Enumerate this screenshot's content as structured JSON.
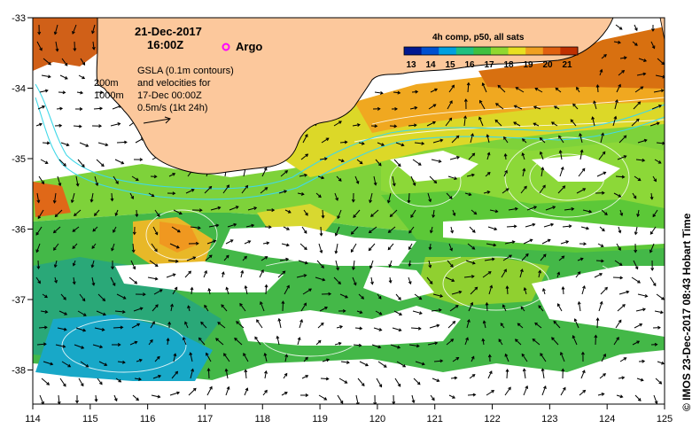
{
  "map": {
    "date": "21-Dec-2017",
    "time": "16:00Z",
    "argo_label": "Argo",
    "composite_label": "4h comp, p50, all sats",
    "colorbar_ticks": [
      "13",
      "14",
      "15",
      "16",
      "17",
      "18",
      "19",
      "20",
      "21"
    ],
    "depth_contours": [
      "200m",
      "1000m"
    ],
    "gsla_lines": [
      "GSLA (0.1m contours)",
      "and velocities for",
      "17-Dec 00:00Z",
      "0.5m/s (1kt 24h)"
    ],
    "credit": "© IMOS 23-Dec-2017 08:43 Hobart Time",
    "x_ticks": [
      "114",
      "115",
      "116",
      "117",
      "118",
      "119",
      "120",
      "121",
      "122",
      "123",
      "124",
      "125"
    ],
    "y_ticks": [
      "-33",
      "-34",
      "-35",
      "-36",
      "-37",
      "-38"
    ],
    "colors": {
      "land": "#fcc89c",
      "bathymetry": "#40d8e8",
      "contour": "#ffffff",
      "argo": "#ff00ff"
    },
    "colorbar_colors": [
      "#001890",
      "#0050d0",
      "#00a0e0",
      "#20c080",
      "#40c040",
      "#90d830",
      "#e8e020",
      "#f0a020",
      "#e06010",
      "#c03000"
    ]
  }
}
